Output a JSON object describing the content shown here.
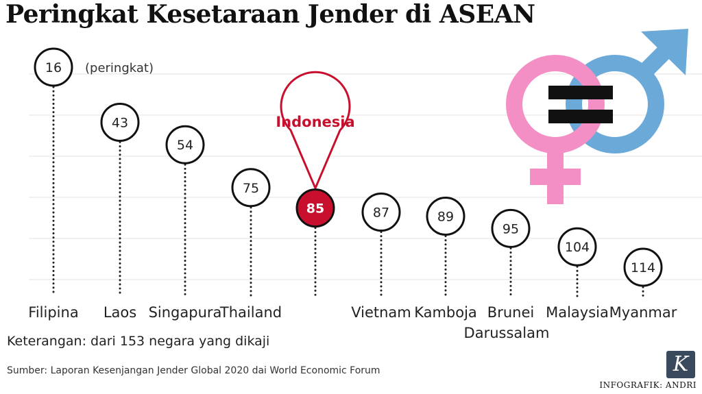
{
  "title": "Peringkat Kesetaraan Jender di ASEAN",
  "chart_data": {
    "type": "scatter",
    "title": "Peringkat Kesetaraan Jender di ASEAN",
    "unit_label": "(peringkat)",
    "categories": [
      "Filipina",
      "Laos",
      "Singapura",
      "Thailand",
      "Indonesia",
      "Vietnam",
      "Kamboja",
      "Brunei Darussalam",
      "Malaysia",
      "Myanmar"
    ],
    "values": [
      16,
      43,
      54,
      75,
      85,
      87,
      89,
      95,
      104,
      114
    ],
    "highlight": "Indonesia",
    "highlight_color": "#c8102e",
    "grid": true,
    "ylim": [
      0,
      153
    ],
    "y_inverted": true
  },
  "note": "Keterangan: dari 153 negara yang dikaji",
  "source": "Sumber: Laporan Kesenjangan Jender Global 2020 dai World Economic Forum",
  "credit": "INFOGRAFIK: ANDRI",
  "logo_letter": "K",
  "colors": {
    "female_symbol": "#f48fc6",
    "male_symbol": "#6aa9d8",
    "accent": "#c8102e"
  },
  "icons": [
    "female-symbol-icon",
    "male-symbol-icon",
    "equal-sign-icon",
    "kompas-logo-icon"
  ]
}
